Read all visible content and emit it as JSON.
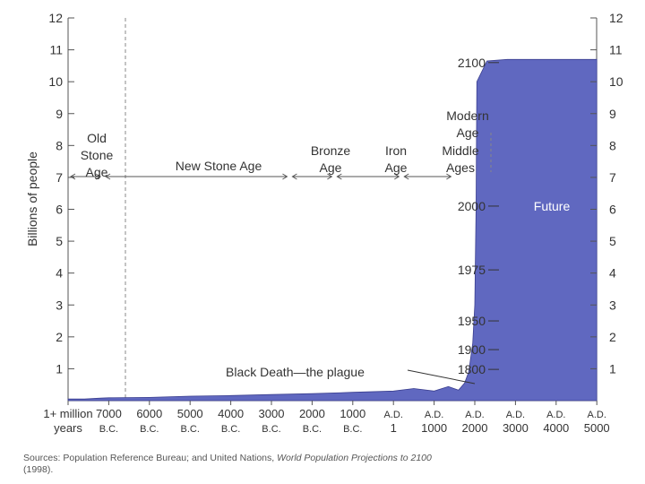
{
  "chart_data": {
    "type": "area",
    "ylabel": "Billions of people",
    "ylim": [
      0,
      12
    ],
    "y_ticks": [
      1,
      2,
      3,
      4,
      5,
      6,
      7,
      8,
      9,
      10,
      11,
      12
    ],
    "x_ticks": [
      {
        "line1": "1+ million",
        "line2": "years"
      },
      {
        "line1": "7000",
        "line2": "B.C."
      },
      {
        "line1": "6000",
        "line2": "B.C."
      },
      {
        "line1": "5000",
        "line2": "B.C."
      },
      {
        "line1": "4000",
        "line2": "B.C."
      },
      {
        "line1": "3000",
        "line2": "B.C."
      },
      {
        "line1": "2000",
        "line2": "B.C."
      },
      {
        "line1": "1000",
        "line2": "B.C."
      },
      {
        "line1": "A.D.",
        "line2": "1"
      },
      {
        "line1": "A.D.",
        "line2": "1000"
      },
      {
        "line1": "A.D.",
        "line2": "2000"
      },
      {
        "line1": "A.D.",
        "line2": "3000"
      },
      {
        "line1": "A.D.",
        "line2": "4000"
      },
      {
        "line1": "A.D.",
        "line2": "5000"
      }
    ],
    "series": [
      {
        "color": "#6068c0",
        "points": [
          {
            "pos": 0.0,
            "value": 0.05
          },
          {
            "pos": 0.4,
            "value": 0.05
          },
          {
            "pos": 0.8,
            "value": 0.08
          },
          {
            "pos": 1.0,
            "value": 0.09
          },
          {
            "pos": 2.0,
            "value": 0.1
          },
          {
            "pos": 3.0,
            "value": 0.14
          },
          {
            "pos": 4.0,
            "value": 0.16
          },
          {
            "pos": 5.0,
            "value": 0.19
          },
          {
            "pos": 6.0,
            "value": 0.22
          },
          {
            "pos": 7.0,
            "value": 0.26
          },
          {
            "pos": 8.0,
            "value": 0.3
          },
          {
            "pos": 8.5,
            "value": 0.38
          },
          {
            "pos": 9.0,
            "value": 0.3
          },
          {
            "pos": 9.35,
            "value": 0.44
          },
          {
            "pos": 9.6,
            "value": 0.33
          },
          {
            "pos": 9.75,
            "value": 0.55
          },
          {
            "pos": 9.85,
            "value": 0.9
          },
          {
            "pos": 9.95,
            "value": 1.8
          },
          {
            "pos": 10.0,
            "value": 3.0
          },
          {
            "pos": 10.03,
            "value": 6.0
          },
          {
            "pos": 10.05,
            "value": 10.0
          },
          {
            "pos": 10.3,
            "value": 10.65
          },
          {
            "pos": 10.8,
            "value": 10.7
          },
          {
            "pos": 13.0,
            "value": 10.7
          }
        ]
      }
    ],
    "time_markers": [
      {
        "label": "2100",
        "value": 10.6
      },
      {
        "label": "2000",
        "value": 6.1
      },
      {
        "label": "1975",
        "value": 4.1
      },
      {
        "label": "1950",
        "value": 2.5
      },
      {
        "label": "1900",
        "value": 1.6
      },
      {
        "label": "1800",
        "value": 0.98
      }
    ],
    "eras": [
      {
        "lines": [
          "Old",
          "Stone",
          "Age"
        ],
        "from": 0.0,
        "to": 0.86
      },
      {
        "lines": [
          "New Stone Age"
        ],
        "from": 0.86,
        "to": 5.45
      },
      {
        "lines": [
          "Bronze",
          "Age"
        ],
        "from": 5.45,
        "to": 6.55
      },
      {
        "lines": [
          "Iron",
          "Age"
        ],
        "from": 6.55,
        "to": 8.2
      },
      {
        "lines": [
          "Middle",
          "Ages"
        ],
        "from": 8.2,
        "to": 9.48
      },
      {
        "lines": [
          "Modern",
          "Age"
        ],
        "from": 9.48,
        "to": 9.9
      }
    ],
    "annotations": {
      "future": "Future",
      "black_death": "Black Death—the plague"
    }
  },
  "source": {
    "prefix": "Sources: Population Reference Bureau; and United Nations, ",
    "title": "World Population Projections to 2100",
    "suffix": "(1998)."
  }
}
